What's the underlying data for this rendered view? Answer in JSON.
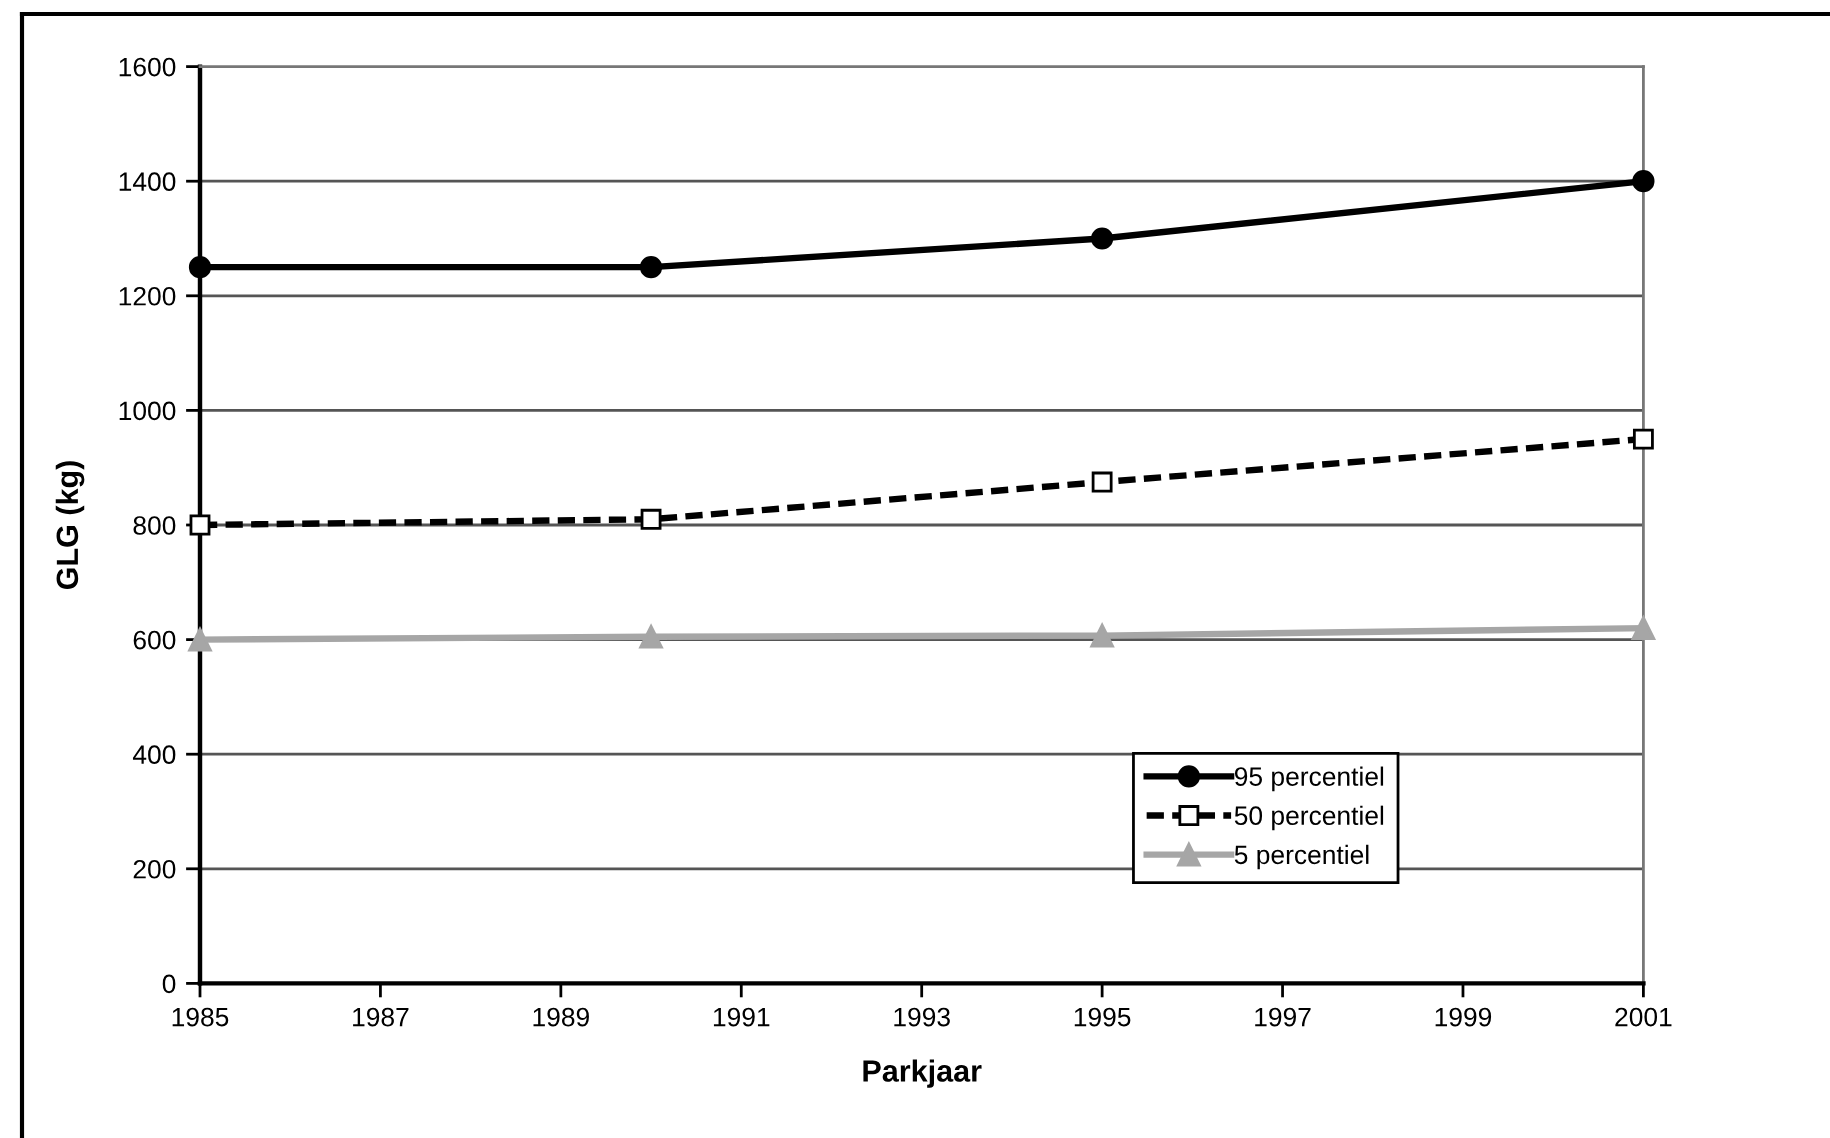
{
  "chart_data": {
    "type": "line",
    "xlabel": "Parkjaar",
    "ylabel": "GLG (kg)",
    "x": [
      1985,
      1990,
      1995,
      2001
    ],
    "series": [
      {
        "name": "95 percentiel",
        "color": "#000000",
        "values": [
          1250,
          1250,
          1300,
          1400
        ],
        "marker": "circle",
        "line_style": "solid"
      },
      {
        "name": "50 percentiel",
        "color": "#000000",
        "values": [
          800,
          810,
          875,
          950
        ],
        "marker": "square",
        "line_style": "dashed"
      },
      {
        "name": "5 percentiel",
        "color": "#a6a6a6",
        "values": [
          600,
          605,
          607,
          620
        ],
        "marker": "triangle",
        "line_style": "solid"
      }
    ],
    "xlim": [
      1985,
      2001
    ],
    "xticks": [
      1985,
      1987,
      1989,
      1991,
      1993,
      1995,
      1997,
      1999,
      2001
    ],
    "ylim": [
      0,
      1600
    ],
    "yticks": [
      0,
      200,
      400,
      600,
      800,
      1000,
      1200,
      1400,
      1600
    ],
    "grid": "y",
    "legend": "lower right"
  }
}
